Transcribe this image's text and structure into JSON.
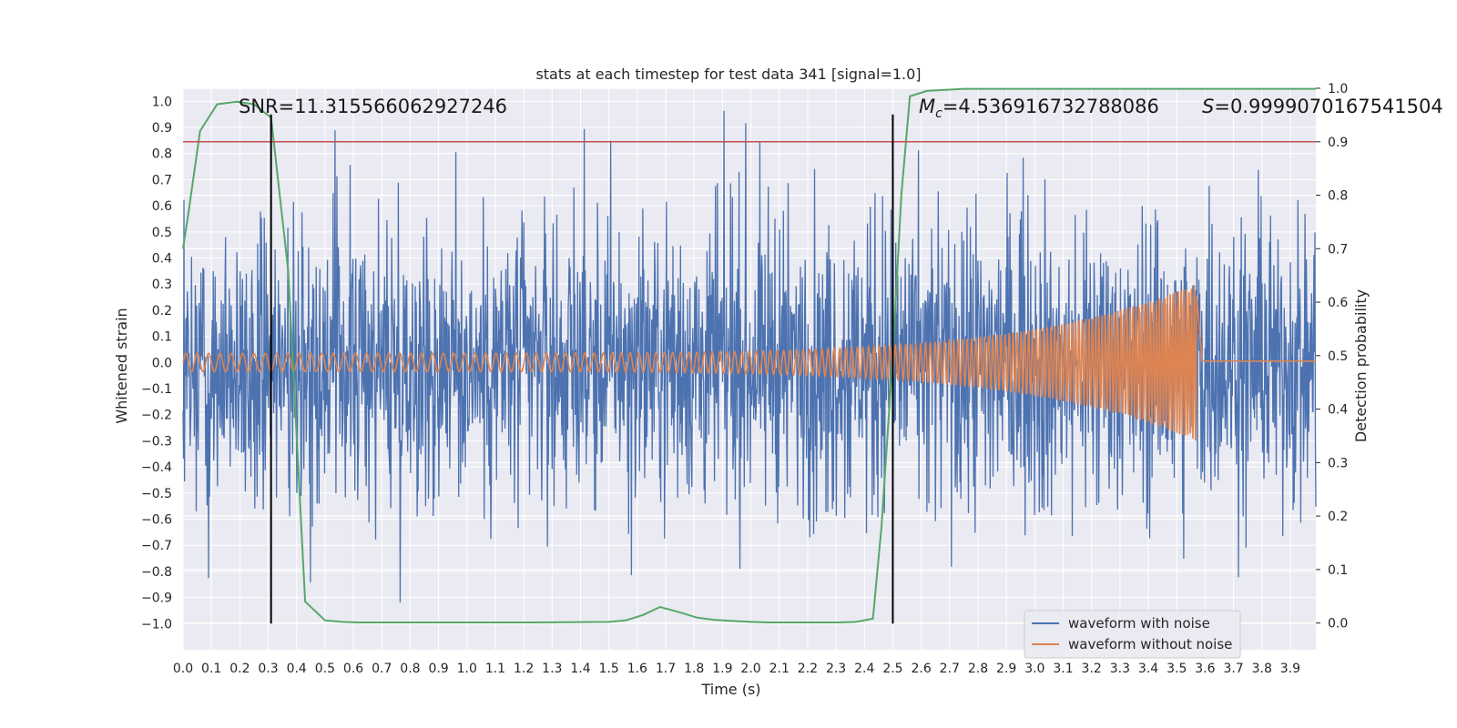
{
  "chart_data": {
    "type": "line",
    "title": "stats at each timestep for test data 341 [signal=1.0]",
    "xlabel": "Time (s)",
    "ylabel": "Whitened strain",
    "y2label": "Detection probability",
    "xlim": [
      0.0,
      3.99
    ],
    "ylim": [
      -1.1,
      1.05
    ],
    "y2lim": [
      -0.05,
      1.0
    ],
    "xticks": [
      "0.0",
      "0.1",
      "0.2",
      "0.3",
      "0.4",
      "0.5",
      "0.6",
      "0.7",
      "0.8",
      "0.9",
      "1.0",
      "1.1",
      "1.2",
      "1.3",
      "1.4",
      "1.5",
      "1.6",
      "1.7",
      "1.8",
      "1.9",
      "2.0",
      "2.1",
      "2.2",
      "2.3",
      "2.4",
      "2.5",
      "2.6",
      "2.7",
      "2.8",
      "2.9",
      "3.0",
      "3.1",
      "3.2",
      "3.3",
      "3.4",
      "3.5",
      "3.6",
      "3.7",
      "3.8",
      "3.9"
    ],
    "yticks": [
      "1.0",
      "0.9",
      "0.8",
      "0.7",
      "0.6",
      "0.5",
      "0.4",
      "0.3",
      "0.2",
      "0.1",
      "0.0",
      "−0.1",
      "−0.2",
      "−0.3",
      "−0.4",
      "−0.5",
      "−0.6",
      "−0.7",
      "−0.8",
      "−0.9",
      "−1.0"
    ],
    "y2ticks": [
      "1.0",
      "0.9",
      "0.8",
      "0.7",
      "0.6",
      "0.5",
      "0.4",
      "0.3",
      "0.2",
      "0.1",
      "0.0"
    ],
    "grid": true,
    "legend_position": "lower-right",
    "series": [
      {
        "name": "waveform with noise",
        "color": "#4c72b0",
        "axis": "left",
        "description_noise_amplitude": 0.33,
        "t_range": [
          0.0,
          3.99
        ]
      },
      {
        "name": "waveform without noise",
        "color": "#dd8452",
        "axis": "left",
        "chirp": {
          "t_end": 3.57,
          "amp_start": 0.035,
          "amp_end": 0.3,
          "freq_start": 25,
          "freq_end": 110,
          "tail_value": 0.005
        }
      },
      {
        "name": "",
        "color": "#55a868",
        "axis": "right",
        "x": [
          0.0,
          0.02,
          0.06,
          0.12,
          0.19,
          0.25,
          0.31,
          0.37,
          0.43,
          0.5,
          0.56,
          0.62,
          0.75,
          1.0,
          1.25,
          1.5,
          1.56,
          1.62,
          1.68,
          1.75,
          1.81,
          1.87,
          1.93,
          2.0,
          2.06,
          2.12,
          2.18,
          2.25,
          2.31,
          2.37,
          2.43,
          2.46,
          2.5,
          2.53,
          2.56,
          2.62,
          2.75,
          3.0,
          3.5,
          3.99
        ],
        "y": [
          0.7,
          0.77,
          0.92,
          0.97,
          0.975,
          0.97,
          0.945,
          0.66,
          0.04,
          0.005,
          0.002,
          0.001,
          0.001,
          0.001,
          0.001,
          0.002,
          0.005,
          0.015,
          0.03,
          0.02,
          0.01,
          0.006,
          0.004,
          0.002,
          0.001,
          0.001,
          0.001,
          0.001,
          0.001,
          0.002,
          0.008,
          0.18,
          0.5,
          0.8,
          0.985,
          0.995,
          0.999,
          0.999,
          0.999,
          0.999
        ]
      }
    ],
    "annotations": {
      "snr": "SNR=11.315566062927246",
      "mc_symbol": "M",
      "mc_sub": "c",
      "mc_value": "=4.536916732788086",
      "s_symbol": "S",
      "s_value": "=0.9999070167541504"
    },
    "vlines": [
      {
        "x": 0.31,
        "y_from": -1.0,
        "y_to": 0.95,
        "color": "#000000"
      },
      {
        "x": 2.5,
        "y_from": -1.0,
        "y_to": 0.95,
        "color": "#000000"
      }
    ],
    "threshold": {
      "value_right_axis": 0.9,
      "color": "#c44e52"
    },
    "background_color": "#eaeaf2"
  }
}
